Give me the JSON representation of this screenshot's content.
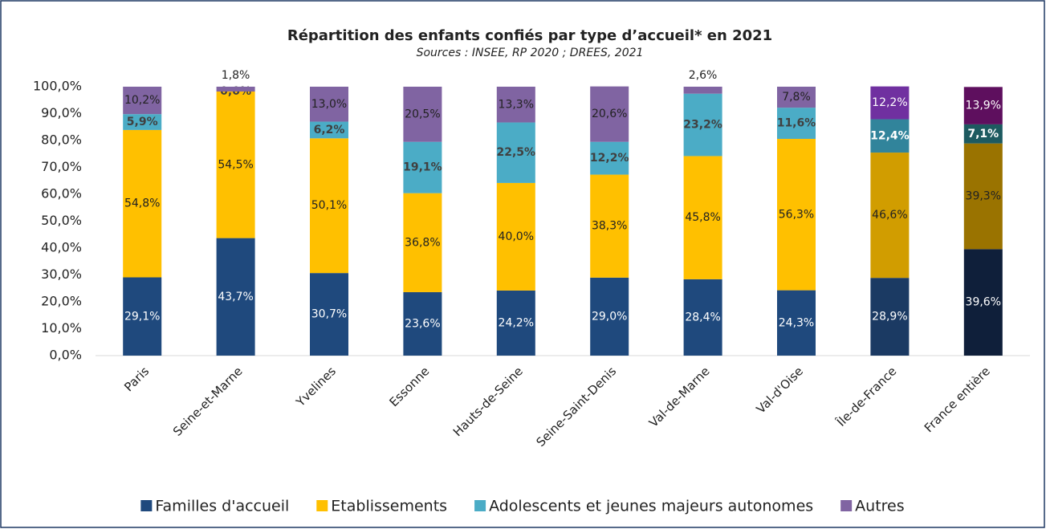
{
  "chart_data": {
    "type": "stacked_bar",
    "title": "Répartition des enfants confiés par type d’accueil* en 2021",
    "subtitle": "Sources : INSEE, RP 2020 ; DREES, 2021",
    "categories": [
      "Paris",
      "Seine-et-Marne",
      "Yvelines",
      "Essonne",
      "Hauts-de-Seine",
      "Seine-Saint-Denis",
      "Val-de-Marne",
      "Val-d'Oise",
      "Île-de-France",
      "France entière"
    ],
    "series": [
      {
        "name": "Familles d'accueil",
        "color": "#1f497d",
        "colors": [
          "#1f497d",
          "#1f497d",
          "#1f497d",
          "#1f497d",
          "#1f497d",
          "#1f497d",
          "#1f497d",
          "#1f497d",
          "#1b3a63",
          "#0f1f3a"
        ],
        "values": [
          29.1,
          43.7,
          30.7,
          23.6,
          24.2,
          29.0,
          28.4,
          24.3,
          28.9,
          39.6
        ],
        "value_labels": [
          "29,1%",
          "43,7%",
          "30,7%",
          "23,6%",
          "24,2%",
          "29,0%",
          "28,4%",
          "24,3%",
          "28,9%",
          "39,6%"
        ]
      },
      {
        "name": "Etablissements",
        "color": "#ffc000",
        "colors": [
          "#ffc000",
          "#ffc000",
          "#ffc000",
          "#ffc000",
          "#ffc000",
          "#ffc000",
          "#ffc000",
          "#ffc000",
          "#d19d00",
          "#9a7300"
        ],
        "values": [
          54.8,
          54.5,
          50.1,
          36.8,
          40.0,
          38.3,
          45.8,
          56.3,
          46.6,
          39.3
        ],
        "value_labels": [
          "54,8%",
          "54,5%",
          "50,1%",
          "36,8%",
          "40,0%",
          "38,3%",
          "45,8%",
          "56,3%",
          "46,6%",
          "39,3%"
        ]
      },
      {
        "name": "Adolescents et jeunes majeurs autonomes",
        "color": "#4bacc6",
        "colors": [
          "#4bacc6",
          "#4bacc6",
          "#4bacc6",
          "#4bacc6",
          "#4bacc6",
          "#4bacc6",
          "#4bacc6",
          "#4bacc6",
          "#31849b",
          "#1d5a60"
        ],
        "values": [
          5.9,
          0.0,
          6.2,
          19.1,
          22.5,
          12.2,
          23.2,
          11.6,
          12.4,
          7.1
        ],
        "value_labels": [
          "5,9%",
          "0,0%",
          "6,2%",
          "19,1%",
          "22,5%",
          "12,2%",
          "23,2%",
          "11,6%",
          "12,4%",
          "7,1%"
        ]
      },
      {
        "name": "Autres",
        "color": "#8064a2",
        "colors": [
          "#8064a2",
          "#8064a2",
          "#8064a2",
          "#8064a2",
          "#8064a2",
          "#8064a2",
          "#8064a2",
          "#8064a2",
          "#7030a0",
          "#5e0f5e"
        ],
        "values": [
          10.2,
          1.8,
          13.0,
          20.5,
          13.3,
          20.6,
          2.6,
          7.8,
          12.2,
          13.9
        ],
        "value_labels": [
          "10,2%",
          "1,8%",
          "13,0%",
          "20,5%",
          "13,3%",
          "20,6%",
          "2,6%",
          "7,8%",
          "12,2%",
          "13,9%"
        ]
      }
    ],
    "ylim": [
      0,
      100
    ],
    "yticks": [
      {
        "value": 0,
        "label": "0,0%"
      },
      {
        "value": 10,
        "label": "10,0%"
      },
      {
        "value": 20,
        "label": "20,0%"
      },
      {
        "value": 30,
        "label": "30,0%"
      },
      {
        "value": 40,
        "label": "40,0%"
      },
      {
        "value": 50,
        "label": "50,0%"
      },
      {
        "value": 60,
        "label": "60,0%"
      },
      {
        "value": 70,
        "label": "70,0%"
      },
      {
        "value": 80,
        "label": "80,0%"
      },
      {
        "value": 90,
        "label": "90,0%"
      },
      {
        "value": 100,
        "label": "100,0%"
      }
    ],
    "grid": false,
    "legend": "bottom"
  }
}
